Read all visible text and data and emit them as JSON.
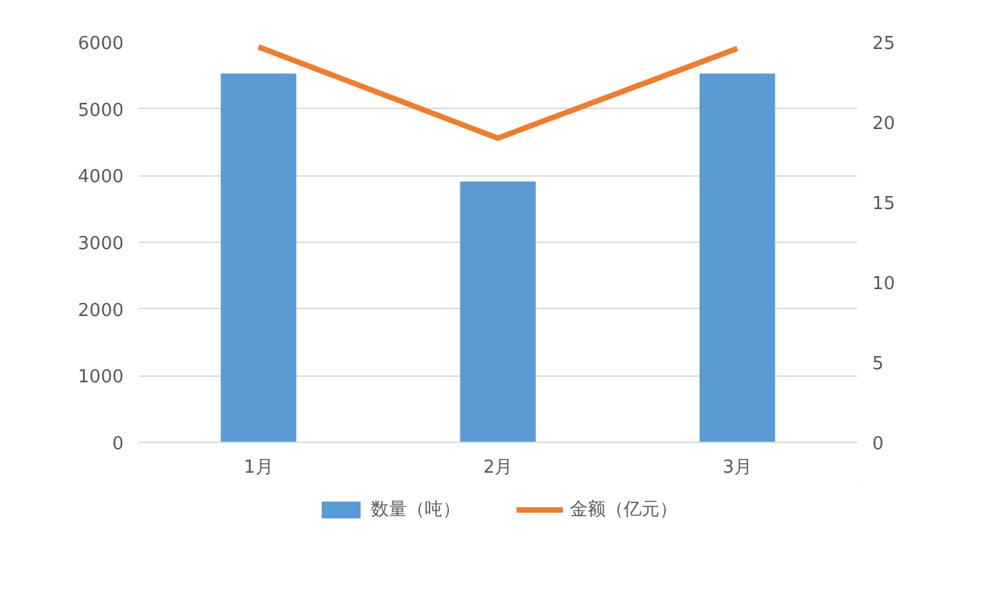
{
  "chart_data": {
    "type": "bar",
    "categories": [
      "1月",
      "2月",
      "3月"
    ],
    "series": [
      {
        "name": "数量（吨）",
        "color": "#5b9bd5",
        "values": [
          5520,
          3900,
          5520
        ]
      },
      {
        "name": "金额（亿元）",
        "color": "#ed7d31",
        "type": "line",
        "axis": "y2",
        "values": [
          24.7,
          19.0,
          24.6
        ]
      }
    ],
    "ylim": [
      0,
      6000
    ],
    "yticks": [
      0,
      1000,
      2000,
      3000,
      4000,
      5000,
      6000
    ],
    "y2lim": [
      0,
      25
    ],
    "y2ticks": [
      0,
      5,
      10,
      15,
      20,
      25
    ],
    "grid": "y",
    "legend": "bottom",
    "marker": "none"
  }
}
